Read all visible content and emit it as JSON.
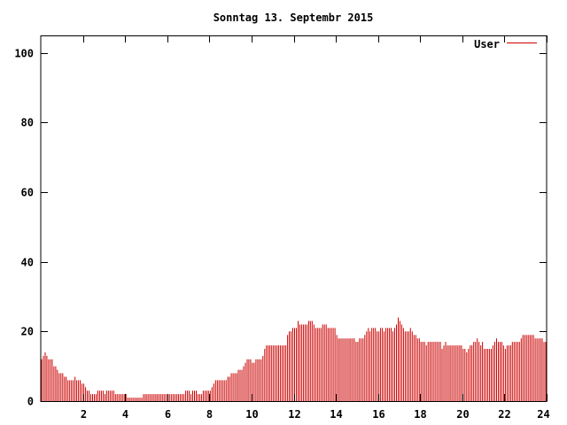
{
  "chart_data": {
    "type": "bar",
    "title": "Sonntag 13. Septembr 2015",
    "xlabel": "",
    "ylabel": "",
    "xlim": [
      0,
      24
    ],
    "ylim": [
      0,
      105
    ],
    "x_ticks": [
      2,
      4,
      6,
      8,
      10,
      12,
      14,
      16,
      18,
      20,
      22,
      24
    ],
    "y_ticks": [
      0,
      20,
      40,
      60,
      80,
      100
    ],
    "grid": false,
    "legend_position": "top-right",
    "series": [
      {
        "name": "User",
        "color": "#cc0000",
        "bin_hours": 0.0833,
        "values": [
          12,
          13,
          14,
          13,
          12,
          12,
          12,
          10,
          10,
          9,
          8,
          8,
          8,
          7,
          7,
          6,
          6,
          6,
          6,
          7,
          6,
          6,
          6,
          5,
          5,
          4,
          3,
          3,
          2,
          2,
          2,
          2,
          3,
          3,
          3,
          3,
          2,
          3,
          3,
          3,
          3,
          3,
          2,
          2,
          2,
          2,
          2,
          2,
          2,
          1,
          1,
          1,
          1,
          1,
          1,
          1,
          1,
          1,
          2,
          2,
          2,
          2,
          2,
          2,
          2,
          2,
          2,
          2,
          2,
          2,
          2,
          2,
          2,
          2,
          2,
          2,
          2,
          2,
          2,
          2,
          2,
          2,
          3,
          3,
          3,
          2,
          3,
          3,
          3,
          2,
          2,
          2,
          3,
          3,
          3,
          3,
          3,
          4,
          5,
          6,
          6,
          6,
          6,
          6,
          6,
          6,
          7,
          7,
          8,
          8,
          8,
          8,
          9,
          9,
          9,
          10,
          11,
          12,
          12,
          12,
          11,
          11,
          12,
          12,
          12,
          12,
          13,
          15,
          16,
          16,
          16,
          16,
          16,
          16,
          16,
          16,
          16,
          16,
          16,
          16,
          19,
          20,
          20,
          21,
          21,
          21,
          23,
          22,
          22,
          22,
          22,
          22,
          23,
          23,
          23,
          22,
          21,
          21,
          21,
          21,
          22,
          22,
          22,
          21,
          21,
          21,
          21,
          21,
          19,
          18,
          18,
          18,
          18,
          18,
          18,
          18,
          18,
          18,
          18,
          17,
          17,
          18,
          18,
          18,
          19,
          20,
          21,
          20,
          21,
          21,
          21,
          20,
          20,
          21,
          21,
          20,
          21,
          21,
          21,
          21,
          20,
          21,
          22,
          24,
          23,
          22,
          21,
          20,
          20,
          20,
          21,
          20,
          19,
          19,
          18,
          18,
          17,
          17,
          17,
          16,
          17,
          17,
          17,
          17,
          17,
          17,
          17,
          17,
          15,
          16,
          17,
          16,
          16,
          16,
          16,
          16,
          16,
          16,
          16,
          16,
          15,
          15,
          14,
          15,
          16,
          16,
          17,
          17,
          18,
          17,
          16,
          17,
          15,
          15,
          15,
          15,
          15,
          16,
          17,
          18,
          17,
          17,
          17,
          16,
          15,
          16,
          16,
          16,
          17,
          17,
          17,
          17,
          17,
          18,
          19,
          19,
          19,
          19,
          19,
          19,
          19,
          18,
          18,
          18,
          18,
          18,
          17,
          17
        ]
      }
    ]
  }
}
